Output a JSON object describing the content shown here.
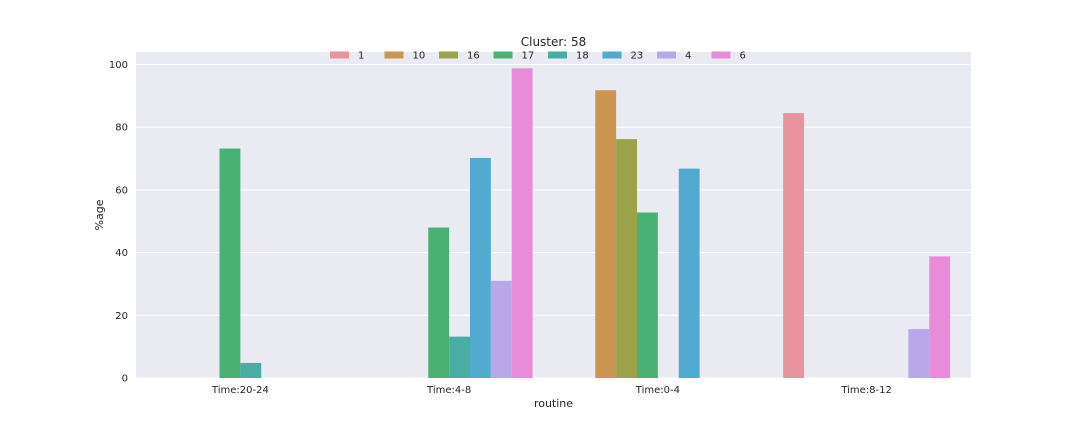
{
  "chart_data": {
    "type": "bar",
    "title": "Cluster: 58",
    "xlabel": "routine",
    "ylabel": "%age",
    "categories": [
      "Time:20-24",
      "Time:4-8",
      "Time:0-4",
      "Time:8-12"
    ],
    "ylim": [
      0,
      104
    ],
    "yticks": [
      0,
      20,
      40,
      60,
      80,
      100
    ],
    "grid": true,
    "legend_position": "top-center",
    "series": [
      {
        "name": "1",
        "color": "#e8949f",
        "values": [
          0,
          0,
          0,
          84.5
        ]
      },
      {
        "name": "10",
        "color": "#cb9651",
        "values": [
          0,
          0,
          91.8,
          0
        ]
      },
      {
        "name": "16",
        "color": "#9ba24a",
        "values": [
          0,
          0,
          76.2,
          0
        ]
      },
      {
        "name": "17",
        "color": "#49b174",
        "values": [
          73.2,
          48.0,
          52.8,
          0
        ]
      },
      {
        "name": "18",
        "color": "#4aada3",
        "values": [
          4.8,
          13.2,
          0,
          0
        ]
      },
      {
        "name": "23",
        "color": "#53aad0",
        "values": [
          0,
          70.2,
          66.8,
          0
        ]
      },
      {
        "name": "4",
        "color": "#b8a8ea",
        "values": [
          0,
          31.0,
          0,
          15.6
        ]
      },
      {
        "name": "6",
        "color": "#e88cd9",
        "values": [
          0,
          98.8,
          0,
          38.8
        ]
      }
    ]
  }
}
